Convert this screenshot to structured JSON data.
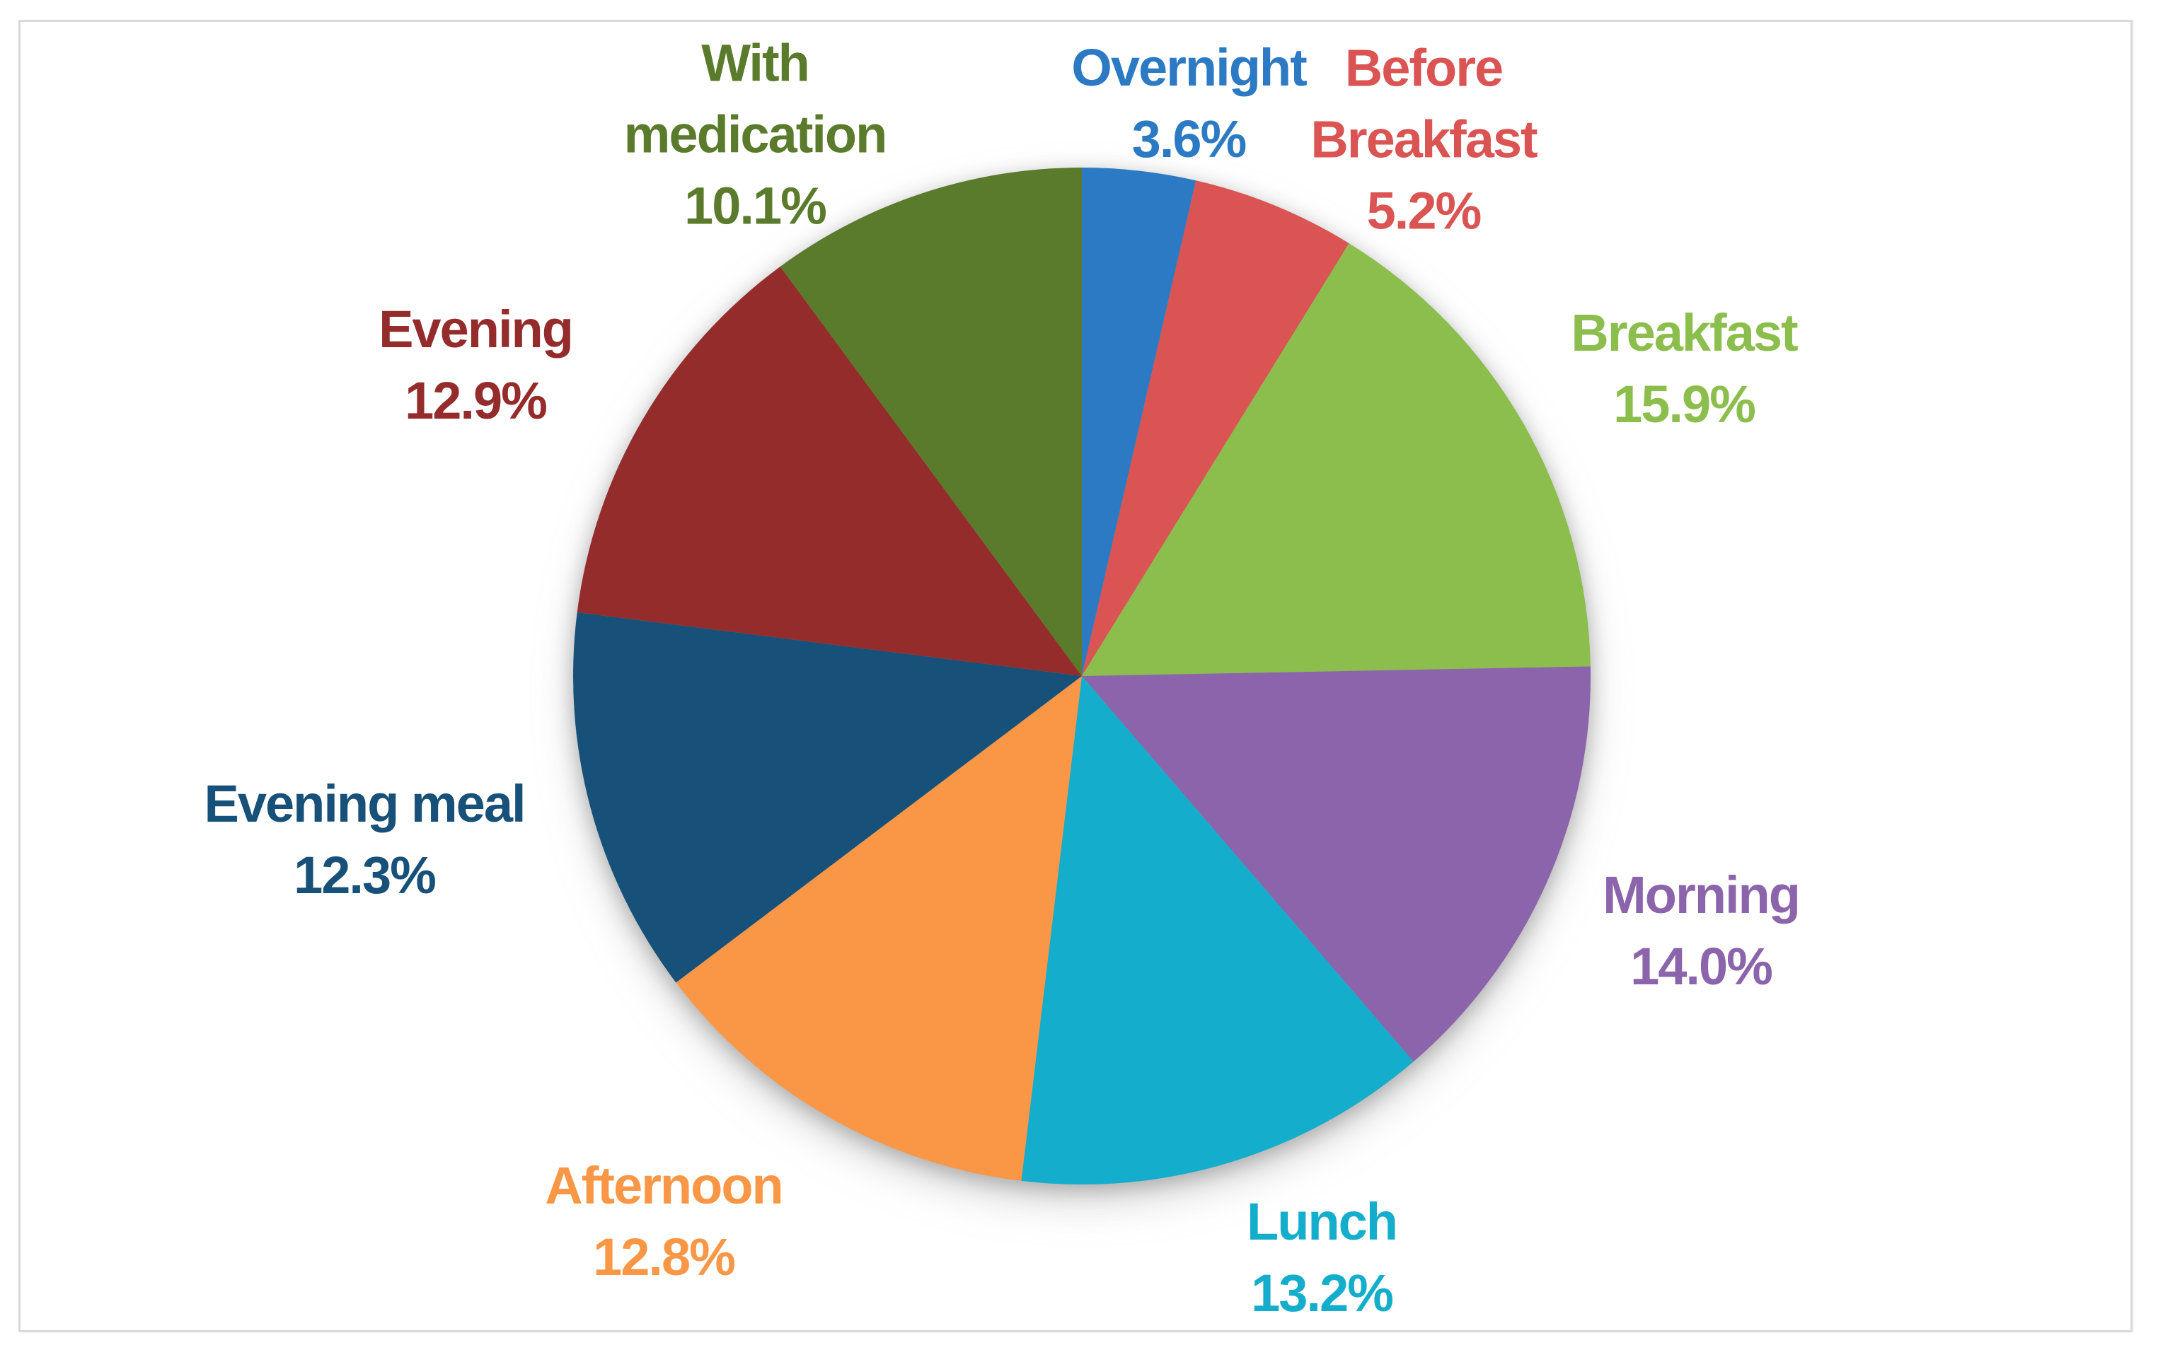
{
  "figure": {
    "background_color": "#ffffff",
    "panel_border_color": "#d9d9d9"
  },
  "chart_data": {
    "type": "pie",
    "title": "",
    "unit": "%",
    "total": 100.0,
    "start_angle_deg": 0,
    "direction": "clockwise",
    "legend_position": "none",
    "label_style": "category name and percentage placed outside each slice, text colored to match slice",
    "slices": [
      {
        "name": "Overnight",
        "label_lines": [
          "Overnight"
        ],
        "value": 3.6,
        "pct_text": "3.6%",
        "color": "#2C7AC3"
      },
      {
        "name": "Before Breakfast",
        "label_lines": [
          "Before",
          "Breakfast"
        ],
        "value": 5.2,
        "pct_text": "5.2%",
        "color": "#D95452"
      },
      {
        "name": "Breakfast",
        "label_lines": [
          "Breakfast"
        ],
        "value": 15.9,
        "pct_text": "15.9%",
        "color": "#8CBE4D"
      },
      {
        "name": "Morning",
        "label_lines": [
          "Morning"
        ],
        "value": 14.0,
        "pct_text": "14.0%",
        "color": "#8C64AC"
      },
      {
        "name": "Lunch",
        "label_lines": [
          "Lunch"
        ],
        "value": 13.2,
        "pct_text": "13.2%",
        "color": "#14ADCB"
      },
      {
        "name": "Afternoon",
        "label_lines": [
          "Afternoon"
        ],
        "value": 12.8,
        "pct_text": "12.8%",
        "color": "#F99746"
      },
      {
        "name": "Evening meal",
        "label_lines": [
          "Evening meal"
        ],
        "value": 12.3,
        "pct_text": "12.3%",
        "color": "#175079"
      },
      {
        "name": "Evening",
        "label_lines": [
          "Evening"
        ],
        "value": 12.9,
        "pct_text": "12.9%",
        "color": "#942C2B"
      },
      {
        "name": "With medication",
        "label_lines": [
          "With",
          "medication"
        ],
        "value": 10.1,
        "pct_text": "10.1%",
        "color": "#5A7B2C"
      }
    ]
  }
}
